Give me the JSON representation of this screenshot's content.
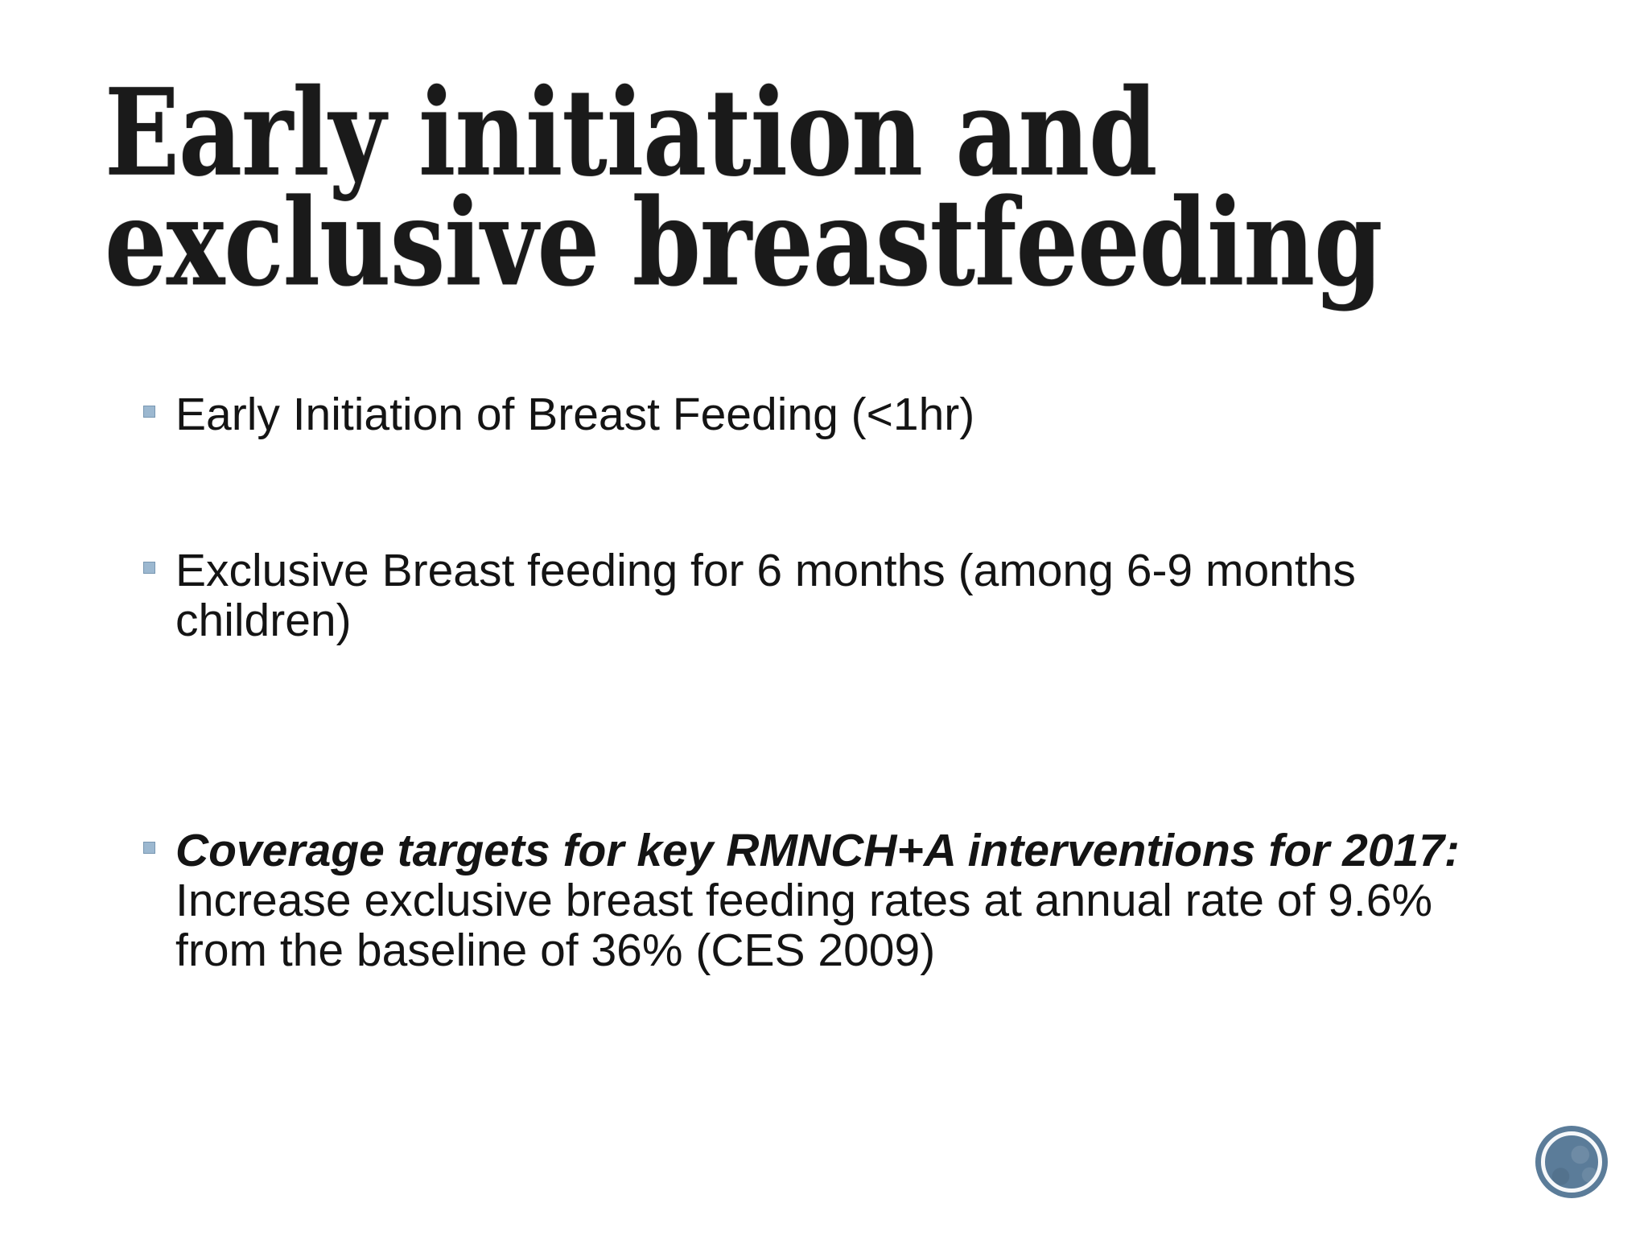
{
  "slide": {
    "title": {
      "lines": [
        "Early initiation and",
        "exclusive breastfeeding"
      ]
    },
    "bullets": [
      {
        "lines": [
          "Early Initiation of Breast Feeding (<1hr)"
        ]
      },
      {
        "lines": [
          "Exclusive Breast feeding for 6 months (among 6-9 months",
          "children)"
        ]
      },
      {
        "lead": "Coverage targets for key RMNCH+A interventions for 2017:",
        "lines": [
          "Increase exclusive breast feeding rates at annual rate of 9.6%",
          "from the baseline of 36% (CES 2009)"
        ]
      }
    ]
  },
  "colors": {
    "bullet_marker": "#9cb8d0",
    "badge_fill": "#5b7c99",
    "badge_ring": "#ffffff",
    "title_text": "#1a1a1a",
    "body_text": "#141414",
    "background": "#ffffff"
  }
}
